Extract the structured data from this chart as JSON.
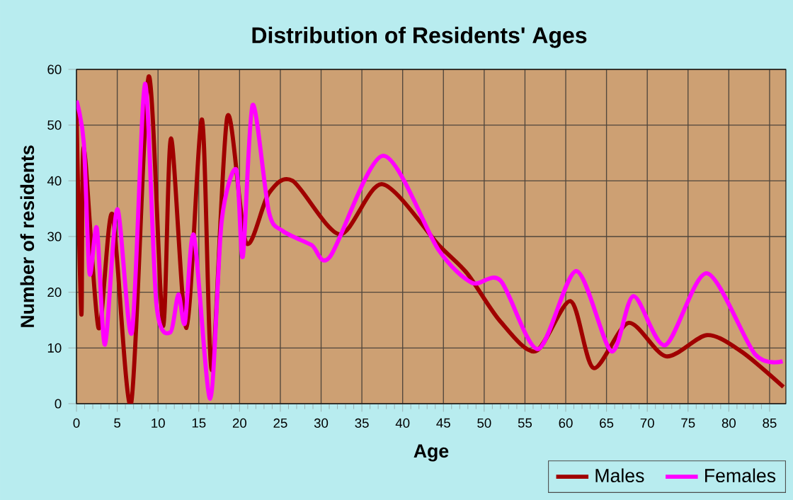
{
  "chart_data": {
    "type": "line",
    "title": "Distribution of Residents' Ages",
    "xlabel": "Age",
    "ylabel": "Number of residents",
    "xlim": [
      0,
      87
    ],
    "ylim": [
      0,
      60
    ],
    "xticks": [
      0,
      5,
      10,
      15,
      20,
      25,
      30,
      35,
      40,
      45,
      50,
      55,
      60,
      65,
      70,
      75,
      80,
      85
    ],
    "yticks": [
      0,
      10,
      20,
      30,
      40,
      50,
      60
    ],
    "grid": true,
    "legend": "bottom right",
    "marker": "none",
    "line_style": "solid",
    "series": [
      {
        "name": "Males",
        "color": "#a00000",
        "x": [
          0,
          0.6,
          0.9,
          2.7,
          4.4,
          6.7,
          8.85,
          10.6,
          11.6,
          13.5,
          15.4,
          16.6,
          18.5,
          20.8,
          23.6,
          26.5,
          32.3,
          37.5,
          44.4,
          47.9,
          51.9,
          56.3,
          60.6,
          63.4,
          67.7,
          72.3,
          77.3,
          81.5,
          86.7
        ],
        "values": [
          52.7,
          16,
          46,
          13.6,
          34,
          0,
          58.7,
          14,
          47.6,
          13.6,
          51,
          6,
          51.5,
          28.9,
          37.8,
          40,
          30.4,
          39.4,
          28.5,
          23.4,
          14.9,
          9.4,
          18.4,
          6.4,
          14.5,
          8.5,
          12.3,
          9.4,
          3
        ]
      },
      {
        "name": "Females",
        "color": "#ff00ff",
        "x": [
          0,
          0.9,
          1.6,
          2.5,
          3.5,
          5,
          6.8,
          8.4,
          9.8,
          11.5,
          12.5,
          13.3,
          14.4,
          16.4,
          17.8,
          19.6,
          20.4,
          21.6,
          23.6,
          25.3,
          28.8,
          31.1,
          37.6,
          44.4,
          48.5,
          52,
          56.6,
          61.3,
          65.6,
          68.3,
          72.2,
          77.3,
          83.2,
          86.6
        ],
        "values": [
          54.4,
          46.8,
          23.4,
          31.5,
          10.6,
          34.9,
          12.8,
          57.4,
          17.9,
          12.8,
          19.6,
          14.5,
          30.2,
          0.9,
          32.7,
          42,
          26.4,
          53.6,
          34.4,
          31,
          28.5,
          26.4,
          44.5,
          27.6,
          21.7,
          22.1,
          9.8,
          23.8,
          9.4,
          19.3,
          10.5,
          23.4,
          8.9,
          7.6
        ]
      }
    ]
  }
}
